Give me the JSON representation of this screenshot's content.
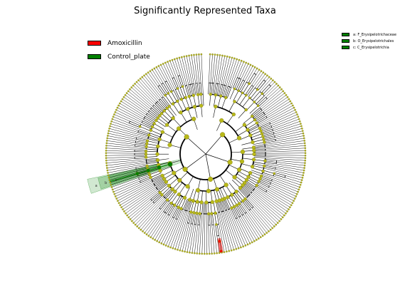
{
  "title": "Significantly Represented Taxa",
  "groups": [
    {
      "name": "Amoxicillin",
      "color": "#ff0000"
    },
    {
      "name": "Control_plate",
      "color": "#008000"
    }
  ],
  "taxa_key": [
    {
      "label": "a: F_Erysipelotrichaceae",
      "color": "#008000"
    },
    {
      "label": "b: O_Erysipelotrichales",
      "color": "#008000"
    },
    {
      "label": "c: C_Erysipelotrichia",
      "color": "#008000"
    }
  ],
  "highlight_letters": [
    "a",
    "b",
    "c"
  ],
  "colors": {
    "node": "#b8b81a",
    "node_edge": "#7a7a10",
    "amoxicillin": "#ff0000",
    "control": "#008000"
  }
}
